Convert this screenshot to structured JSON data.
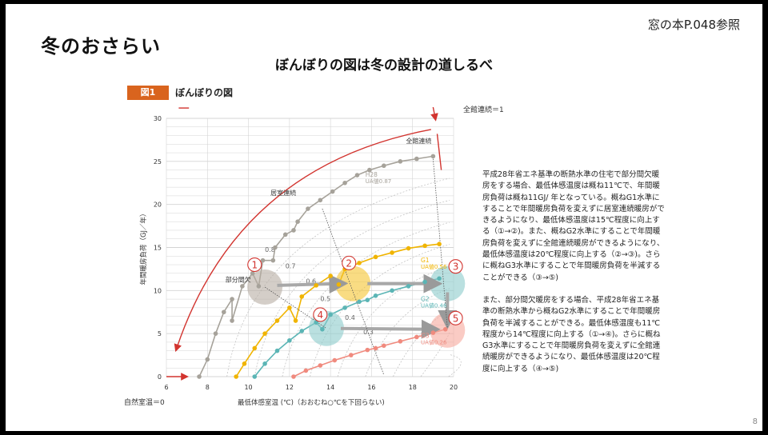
{
  "slide": {
    "title": "冬のおさらい",
    "reference": "窓の本P.048参照",
    "subtitle": "ぼんぼりの図は冬の設計の道しるべ",
    "figure_badge": "図1",
    "figure_title": "ぼんぼりの図",
    "page_number": "8",
    "description": [
      "平成28年省エネ基準の断熱水準の住宅で部分間欠暖房をする場合、最低体感温度は概ね11℃で、年間暖房負荷は概ね11GJ/ 年となっている。概ねG1水準にすることで年間暖房負荷を変えずに居室連続暖房ができるようになり、最低体感温度は15℃程度に向上する（①→②)。また、概ねG2水準にすることで年間暖房負荷を変えずに全館連続暖房ができるようになり、最低体感温度は20℃程度に向上する（②→③)。さらに概ねG3水準にすることで年間暖房負荷を半減することができる（③→⑤)",
      "また、部分間欠暖房をする場合、平成28年省エネ基準の断熱水準から概ねG2水準にすることで年間暖房負荷を半減することができる。最低体感温度も11℃程度から14℃程度に向上する（①→④)。さらに概ねG3水準にすることで年間暖房負荷を変えずに全館連続暖房ができるようになり、最低体感温度は20℃程度に向上する（④→⑤)"
    ]
  },
  "chart_data": {
    "type": "scatter",
    "xlabel": "最低体感室温 (℃)（おおむね○℃を下回らない)",
    "ylabel": "年間暖房負荷（GJ／年）",
    "xlim": [
      6,
      20
    ],
    "ylim": [
      0,
      30
    ],
    "x_ticks": [
      6,
      8,
      10,
      12,
      14,
      16,
      18,
      20
    ],
    "y_ticks": [
      0,
      5,
      10,
      15,
      20,
      25,
      30
    ],
    "grid": true,
    "annotations": {
      "left_bottom": "自然室温＝0",
      "right_top": "全館連続＝1",
      "continuous_all": "全館連続",
      "continuous_room": "居室連続",
      "partial": "部分間欠"
    },
    "ratio_labels": [
      {
        "text": "0.8",
        "x": 10.8,
        "y": 14.5
      },
      {
        "text": "0.7",
        "x": 11.8,
        "y": 12.6
      },
      {
        "text": "0.6",
        "x": 12.8,
        "y": 10.8
      },
      {
        "text": "0.5",
        "x": 13.5,
        "y": 8.8
      },
      {
        "text": "0.4",
        "x": 14.7,
        "y": 6.6
      },
      {
        "text": "0.3",
        "x": 15.6,
        "y": 4.9
      }
    ],
    "series": [
      {
        "name": "H28",
        "sub": "UA値0.87",
        "color": "#a6a29a",
        "label_pos": [
          15.7,
          23.2
        ],
        "points": [
          [
            7.6,
            0
          ],
          [
            8,
            2
          ],
          [
            8.4,
            5
          ],
          [
            8.8,
            7.5
          ],
          [
            9.2,
            9
          ],
          [
            9.7,
            10.5
          ],
          [
            10.2,
            12
          ],
          [
            10.7,
            13.5
          ],
          [
            11.3,
            15
          ],
          [
            11.8,
            16.5
          ],
          [
            12.4,
            18
          ],
          [
            12.9,
            19.5
          ],
          [
            13.5,
            20.5
          ],
          [
            14.1,
            21.5
          ],
          [
            14.7,
            22.5
          ],
          [
            15.3,
            23.4
          ],
          [
            15.9,
            24
          ],
          [
            16.6,
            24.5
          ],
          [
            17.4,
            25
          ],
          [
            18.2,
            25.3
          ],
          [
            19,
            25.6
          ],
          [
            12.2,
            17
          ],
          [
            11.2,
            13.5
          ],
          [
            9.2,
            6.5
          ],
          [
            10.5,
            10.5
          ]
        ]
      },
      {
        "name": "G1",
        "sub": "UA値0.56",
        "color": "#f0b400",
        "label_pos": [
          18.4,
          13.3
        ],
        "points": [
          [
            9.4,
            0
          ],
          [
            9.8,
            1.5
          ],
          [
            10.3,
            3.3
          ],
          [
            10.8,
            5
          ],
          [
            11.4,
            6.5
          ],
          [
            12,
            8
          ],
          [
            12.6,
            9.3
          ],
          [
            13.3,
            10.6
          ],
          [
            14,
            11.7
          ],
          [
            14.7,
            12.5
          ],
          [
            15.4,
            13.2
          ],
          [
            16.2,
            13.9
          ],
          [
            17,
            14.4
          ],
          [
            17.8,
            14.9
          ],
          [
            18.6,
            15.2
          ],
          [
            19.3,
            15.4
          ],
          [
            12.3,
            6.5
          ],
          [
            14.4,
            10.7
          ]
        ]
      },
      {
        "name": "G2",
        "sub": "UA値0.46",
        "color": "#5bb5b5",
        "label_pos": [
          18.4,
          8.8
        ],
        "points": [
          [
            10.3,
            0
          ],
          [
            10.8,
            1.5
          ],
          [
            11.4,
            3
          ],
          [
            12,
            4.2
          ],
          [
            12.6,
            5.3
          ],
          [
            13.3,
            6.3
          ],
          [
            14,
            7.2
          ],
          [
            14.7,
            8
          ],
          [
            15.4,
            8.7
          ],
          [
            16.2,
            9.4
          ],
          [
            17,
            10
          ],
          [
            17.8,
            10.5
          ],
          [
            18.6,
            11
          ],
          [
            19.3,
            11.4
          ],
          [
            13.6,
            5.5
          ],
          [
            15.8,
            8.9
          ]
        ]
      },
      {
        "name": "G3",
        "sub": "UA値0.26",
        "color": "#f08a7e",
        "label_pos": [
          18.4,
          4.5
        ],
        "points": [
          [
            12.2,
            0
          ],
          [
            12.8,
            0.7
          ],
          [
            13.5,
            1.3
          ],
          [
            14.2,
            1.9
          ],
          [
            15,
            2.5
          ],
          [
            15.8,
            3.1
          ],
          [
            16.6,
            3.6
          ],
          [
            17.4,
            4.1
          ],
          [
            18.2,
            4.6
          ],
          [
            19,
            5.1
          ],
          [
            19.6,
            5.5
          ],
          [
            16.2,
            3.3
          ]
        ]
      }
    ],
    "markers": [
      {
        "id": "①",
        "x": 10.8,
        "y": 10.4,
        "color": "#b8ada3",
        "label_pos": [
          10.3,
          13.0
        ]
      },
      {
        "id": "②",
        "x": 15.1,
        "y": 10.8,
        "color": "#f5c430",
        "label_pos": [
          14.9,
          13.2
        ]
      },
      {
        "id": "③",
        "x": 19.7,
        "y": 10.8,
        "color": "#8ccccb",
        "label_pos": [
          20.1,
          12.8
        ]
      },
      {
        "id": "④",
        "x": 13.8,
        "y": 5.6,
        "color": "#8ccccb",
        "label_pos": [
          13.5,
          7.2
        ]
      },
      {
        "id": "⑤",
        "x": 19.7,
        "y": 5.4,
        "color": "#f7a89d",
        "label_pos": [
          20.1,
          6.8
        ]
      }
    ],
    "arrows": [
      {
        "from": [
          11.4,
          10.6
        ],
        "to": [
          14.4,
          10.8
        ]
      },
      {
        "from": [
          15.8,
          10.8
        ],
        "to": [
          19.0,
          10.8
        ]
      },
      {
        "from": [
          19.7,
          9.8
        ],
        "to": [
          19.7,
          6.6
        ]
      },
      {
        "from": [
          14.5,
          5.6
        ],
        "to": [
          18.9,
          5.5
        ]
      }
    ],
    "colors": {
      "axis_arrow": "#d2342f",
      "grid": "#d4d4d4",
      "badge": "#d9641e"
    }
  }
}
